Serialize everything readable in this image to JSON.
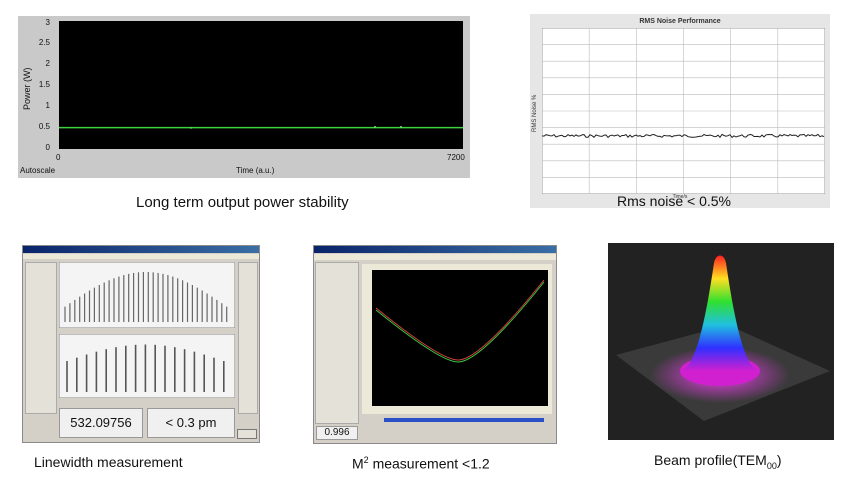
{
  "power_chart": {
    "y_ticks": [
      "3",
      "2.5",
      "2",
      "1.5",
      "1",
      "0.5",
      "0"
    ],
    "y_label": "Power (W)",
    "x_ticks": [
      "0",
      "7200"
    ],
    "x_label": "Time (a.u.)",
    "autoscale_label": "Autoscale",
    "caption": "Long term output power stability",
    "line_color": "#3cd23c",
    "chart_data": {
      "type": "line",
      "x": [
        0,
        7200
      ],
      "series": [
        {
          "values": [
            0.5,
            0.5
          ]
        }
      ],
      "ylim": [
        0,
        3
      ],
      "xlim": [
        0,
        7200
      ]
    }
  },
  "rms_chart": {
    "title": "RMS Noise Performance",
    "y_label": "RMS Noise %",
    "x_label": "Time/s",
    "caption": "Rms noise < 0.5%",
    "chart_data": {
      "type": "line",
      "ylim": [
        0,
        1.0
      ],
      "series": [
        {
          "mean": 0.35
        }
      ]
    }
  },
  "linewidth_panel": {
    "wavelength_readout": "532.09756 nm",
    "linewidth_readout": "< 0.3 pm",
    "caption": "Linewidth measurement"
  },
  "m2_panel": {
    "value_readout": "0.996",
    "caption_prefix": "M",
    "caption_sup": "2",
    "caption_suffix": " measurement <1.2"
  },
  "beam_panel": {
    "caption_prefix": "Beam profile(TEM",
    "caption_sub": "00",
    "caption_suffix": ")"
  }
}
